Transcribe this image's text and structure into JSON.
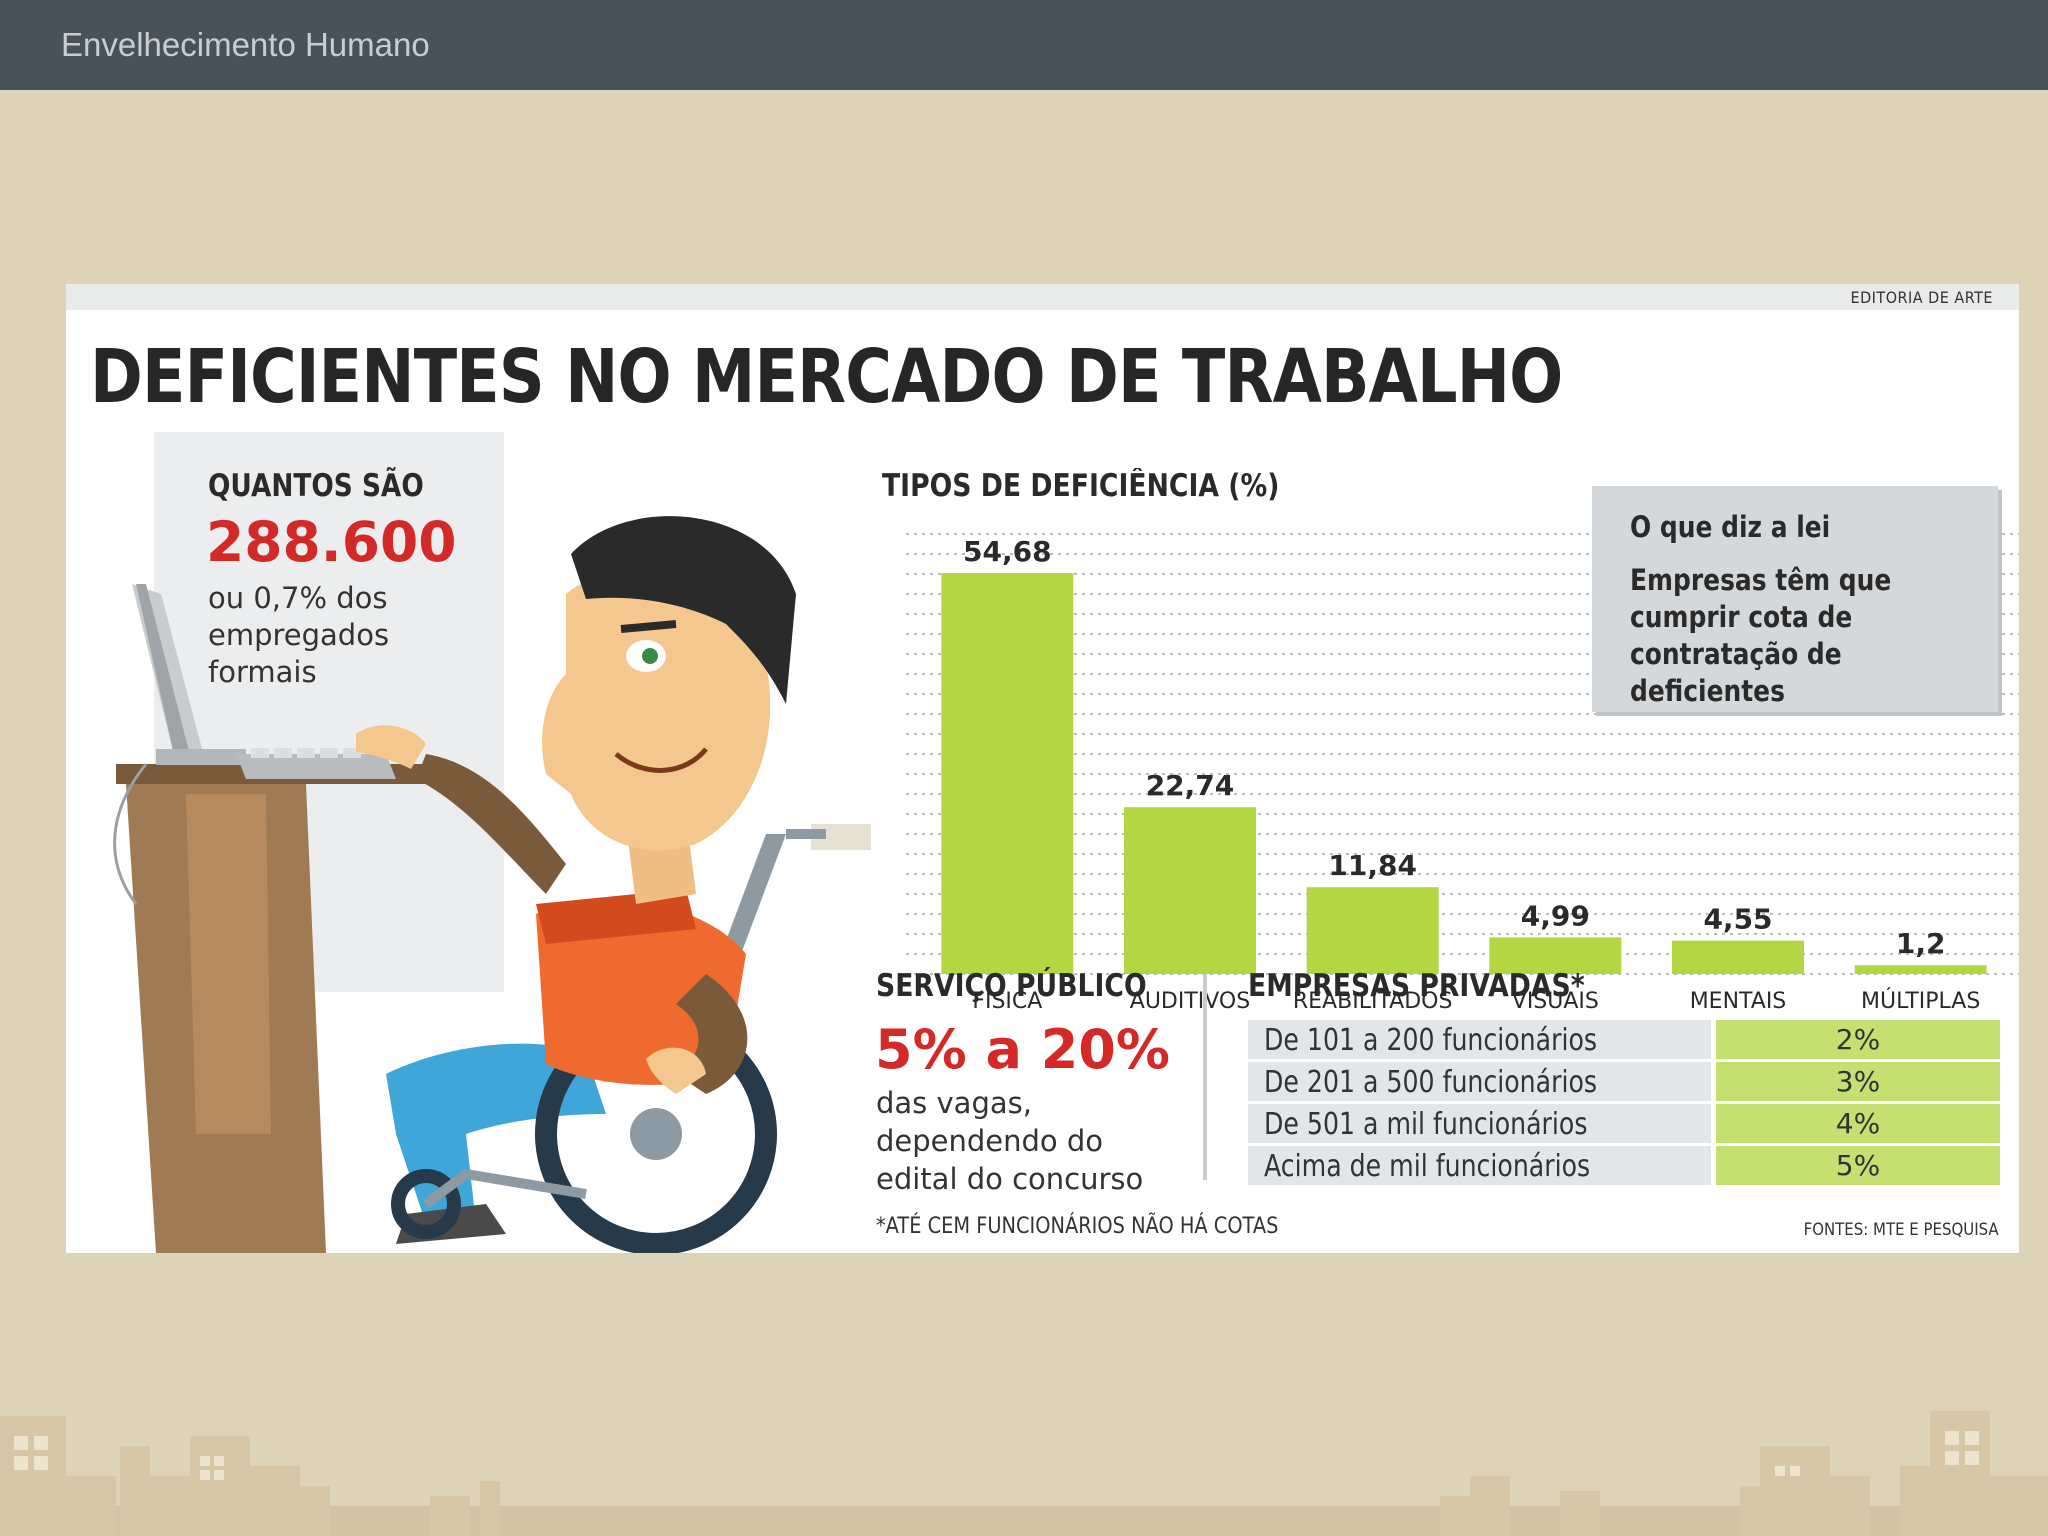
{
  "slide": {
    "title": "Envelhecimento Humano"
  },
  "infographic": {
    "credit": "EDITORIA DE ARTE",
    "headline": "DEFICIENTES NO MERCADO DE TRABALHO",
    "quantos": {
      "label": "QUANTOS SÃO",
      "number": "288.600",
      "description": "ou 0,7% dos empregados formais"
    },
    "law": {
      "title": "O que diz a lei",
      "text": "Empresas têm que cumprir cota de contratação de deficientes"
    },
    "public_service": {
      "title": "SERVIÇO PÚBLICO",
      "value": "5% a 20%",
      "description": "das vagas, dependendo do edital do concurso"
    },
    "private_companies": {
      "title": "EMPRESAS PRIVADAS*",
      "rows": [
        {
          "range": "De 101 a 200 funcionários",
          "pct": "2%"
        },
        {
          "range": "De 201 a 500 funcionários",
          "pct": "3%"
        },
        {
          "range": "De 501 a mil funcionários",
          "pct": "4%"
        },
        {
          "range": "Acima de mil funcionários",
          "pct": "5%"
        }
      ]
    },
    "footnote": "*ATÉ CEM FUNCIONÁRIOS NÃO HÁ COTAS",
    "sources": "FONTES: MTE E PESQUISA"
  },
  "chart_data": {
    "type": "bar",
    "title": "TIPOS DE DEFICIÊNCIA (%)",
    "categories": [
      "FÍSICA",
      "AUDITIVOS",
      "REABILITADOS",
      "VISUAIS",
      "MENTAIS",
      "MÚLTIPLAS"
    ],
    "values": [
      54.68,
      22.74,
      11.84,
      4.99,
      4.55,
      1.2
    ],
    "value_labels": [
      "54,68",
      "22,74",
      "11,84",
      "4,99",
      "4,55",
      "1,2"
    ],
    "ylim": [
      0,
      60
    ],
    "grid": true,
    "bar_color": "#b3d742"
  },
  "colors": {
    "accent_red": "#d42a27",
    "bar_green": "#b3d742",
    "table_green": "#c3e070",
    "topbar": "#47525b",
    "background": "#ddd4b8"
  }
}
